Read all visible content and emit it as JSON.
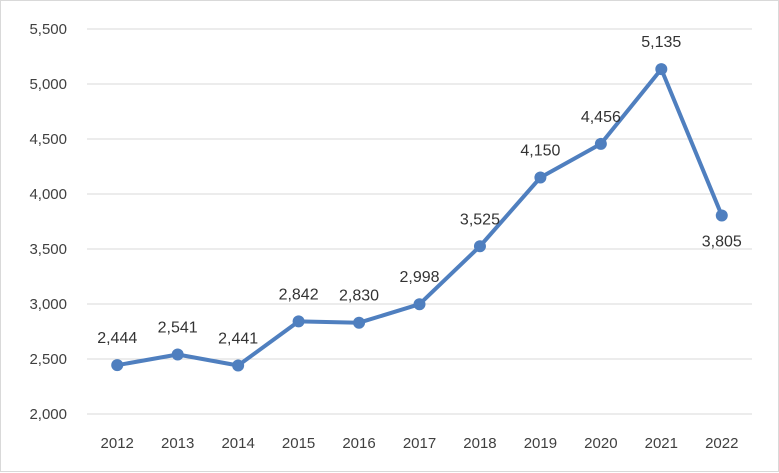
{
  "chart_data": {
    "type": "line",
    "title": "",
    "xlabel": "",
    "ylabel": "",
    "categories": [
      "2012",
      "2013",
      "2014",
      "2015",
      "2016",
      "2017",
      "2018",
      "2019",
      "2020",
      "2021",
      "2022"
    ],
    "values": [
      2444,
      2541,
      2441,
      2842,
      2830,
      2998,
      3525,
      4150,
      4456,
      5135,
      3805
    ],
    "value_labels": [
      "2,444",
      "2,541",
      "2,441",
      "2,842",
      "2,830",
      "2,998",
      "3,525",
      "4,150",
      "4,456",
      "5,135",
      "3,805"
    ],
    "ylim": [
      2000,
      5500
    ],
    "y_ticks": [
      2000,
      2500,
      3000,
      3500,
      4000,
      4500,
      5000,
      5500
    ],
    "y_tick_labels": [
      "2,000",
      "2,500",
      "3,000",
      "3,500",
      "4,000",
      "4,500",
      "5,000",
      "5,500"
    ],
    "grid": "horizontal",
    "legend": "none",
    "colors": {
      "line": "#4f7fbf",
      "grid": "#d9d9d9",
      "label": "#333333",
      "tick": "#404040"
    }
  }
}
